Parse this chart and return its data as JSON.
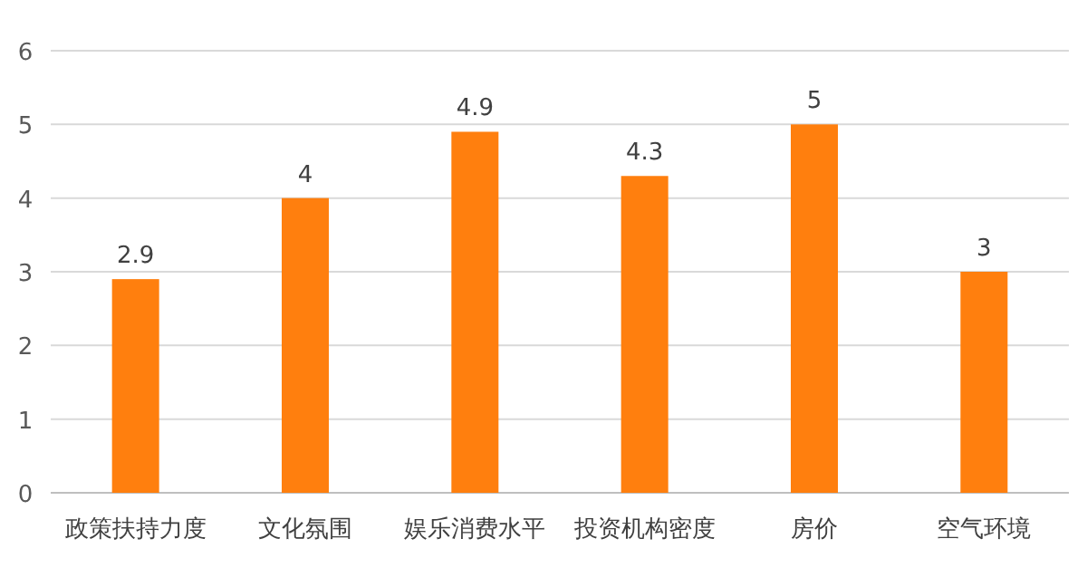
{
  "chart_data": {
    "type": "bar",
    "categories": [
      "政策扶持力度",
      "文化氛围",
      "娱乐消费水平",
      "投资机构密度",
      "房价",
      "空气环境"
    ],
    "values": [
      2.9,
      4,
      4.9,
      4.3,
      5,
      3
    ],
    "color": "#ff7f0e",
    "ylim": [
      0,
      6
    ],
    "yticks": [
      0,
      1,
      2,
      3,
      4,
      5,
      6
    ],
    "grid": "y",
    "data_labels": true
  }
}
